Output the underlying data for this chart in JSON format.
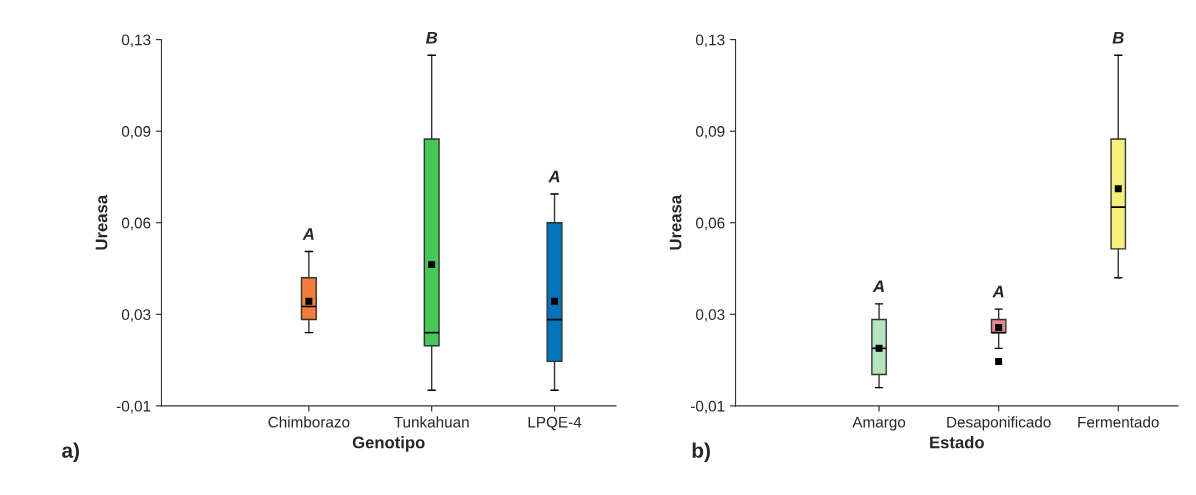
{
  "chart_data": [
    {
      "type": "box",
      "xlabel": "Genotipo",
      "ylabel": "Ureasa",
      "categories": [
        "Chimborazo",
        "Tunkahuan",
        "LPQE-4"
      ],
      "colors": [
        "#f47d3a",
        "#47c95a",
        "#0075bb"
      ],
      "boxes": [
        {
          "low": 0.018,
          "q1": 0.023,
          "median": 0.028,
          "q3": 0.039,
          "high": 0.049,
          "mean": 0.03
        },
        {
          "low": -0.004,
          "q1": 0.013,
          "median": 0.018,
          "q3": 0.092,
          "high": 0.124,
          "mean": 0.044
        },
        {
          "low": -0.004,
          "q1": 0.007,
          "median": 0.023,
          "q3": 0.06,
          "high": 0.071,
          "mean": 0.03
        }
      ],
      "ylim": [
        -0.01,
        0.13
      ],
      "yticks": [
        {
          "value": -0.01,
          "label": "-0,01"
        },
        {
          "value": 0.025,
          "label": "0,03"
        },
        {
          "value": 0.06,
          "label": "0,06"
        },
        {
          "value": 0.095,
          "label": "0,09"
        },
        {
          "value": 0.13,
          "label": "0,13"
        }
      ],
      "grid": false,
      "marker": "square",
      "annotations": [
        {
          "text": "A",
          "x": "Chimborazo",
          "y": 0.049
        },
        {
          "text": "B",
          "x": "Tunkahuan",
          "y": 0.124
        },
        {
          "text": "A",
          "x": "LPQE-4",
          "y": 0.071
        },
        "a)"
      ]
    },
    {
      "type": "box",
      "xlabel": "Estado",
      "ylabel": "Ureasa",
      "categories": [
        "Amargo",
        "Desaponificado",
        "Fermentado"
      ],
      "colors": [
        "#b5e6c0",
        "#e88a8a",
        "#f5f07a"
      ],
      "boxes": [
        {
          "low": -0.003,
          "q1": 0.002,
          "median": 0.012,
          "q3": 0.023,
          "high": 0.029,
          "mean": 0.012
        },
        {
          "low": 0.012,
          "q1": 0.018,
          "median": 0.018,
          "q3": 0.023,
          "high": 0.027,
          "mean": 0.02,
          "outliers": [
            0.007
          ]
        },
        {
          "low": 0.039,
          "q1": 0.05,
          "median": 0.066,
          "q3": 0.092,
          "high": 0.124,
          "mean": 0.073
        }
      ],
      "ylim": [
        -0.01,
        0.13
      ],
      "yticks": [
        {
          "value": -0.01,
          "label": "-0,01"
        },
        {
          "value": 0.025,
          "label": "0,03"
        },
        {
          "value": 0.06,
          "label": "0,06"
        },
        {
          "value": 0.095,
          "label": "0,09"
        },
        {
          "value": 0.13,
          "label": "0,13"
        }
      ],
      "grid": false,
      "marker": "square",
      "annotations": [
        {
          "text": "A",
          "x": "Amargo",
          "y": 0.029
        },
        {
          "text": "A",
          "x": "Desaponificado",
          "y": 0.027
        },
        {
          "text": "B",
          "x": "Fermentado",
          "y": 0.124
        },
        "b)"
      ]
    }
  ]
}
